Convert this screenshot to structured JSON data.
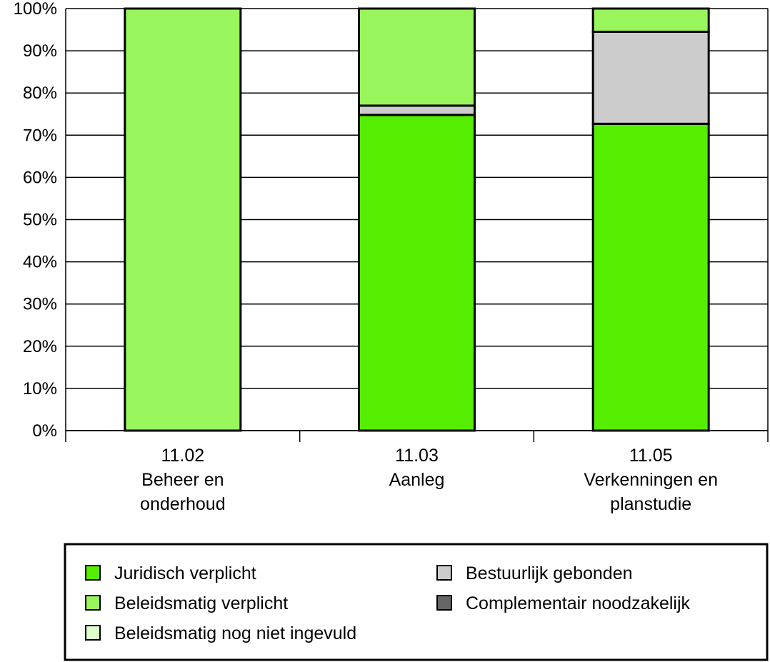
{
  "chart_data": {
    "type": "bar",
    "stacked": true,
    "categories": [
      [
        "11.02",
        "Beheer en",
        "onderhoud"
      ],
      [
        "11.03",
        "Aanleg"
      ],
      [
        "11.05",
        "Verkenningen en",
        "planstudie"
      ]
    ],
    "y_ticks": [
      "0%",
      "10%",
      "20%",
      "30%",
      "40%",
      "50%",
      "60%",
      "70%",
      "80%",
      "90%",
      "100%"
    ],
    "ylim": [
      0,
      100
    ],
    "grid": true,
    "legend_position": "bottom",
    "series": [
      {
        "name": "Juridisch verplicht",
        "color": "#55ee00",
        "values": [
          0,
          74.8,
          72.7
        ]
      },
      {
        "name": "Bestuurlijk gebonden",
        "color": "#cccccc",
        "values": [
          0,
          2.2,
          21.8
        ]
      },
      {
        "name": "Complementair noodzakelijk",
        "color": "#666666",
        "values": [
          0,
          0,
          0
        ]
      },
      {
        "name": "Beleidsmatig verplicht",
        "color": "#99f55c",
        "values": [
          100,
          23.0,
          5.5
        ]
      },
      {
        "name": "Beleidsmatig nog niet ingevuld",
        "color": "#ddffcc",
        "values": [
          0,
          0,
          0
        ]
      }
    ],
    "legend_order": [
      "Juridisch verplicht",
      "Bestuurlijk gebonden",
      "Beleidsmatig verplicht",
      "Complementair noodzakelijk",
      "Beleidsmatig nog niet ingevuld"
    ]
  }
}
